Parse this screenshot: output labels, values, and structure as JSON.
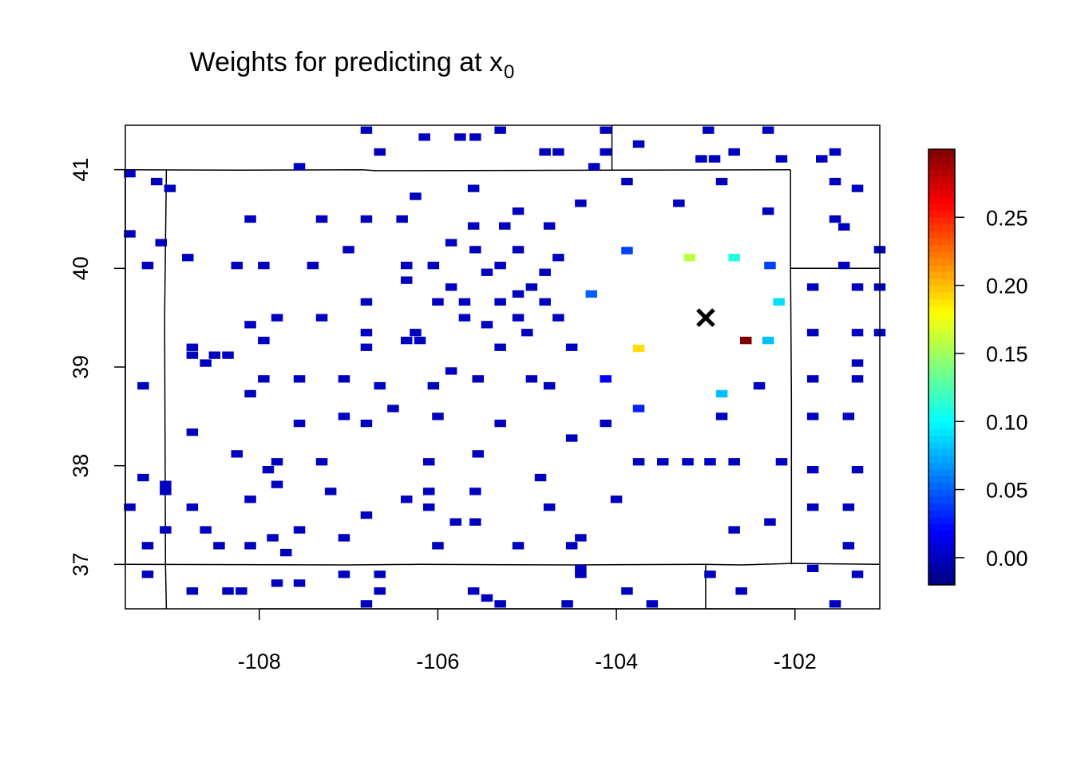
{
  "chart_data": {
    "type": "heatmap",
    "title": "Weights for predicting at x",
    "title_subscript": "0",
    "xlabel": "",
    "ylabel": "",
    "xlim": [
      -109.5,
      -101.05
    ],
    "ylim": [
      36.55,
      41.45
    ],
    "x_ticks": [
      -108,
      -106,
      -104,
      -102
    ],
    "x_tick_labels": [
      "-108",
      "-106",
      "-104",
      "-102"
    ],
    "y_ticks": [
      37,
      38,
      39,
      40,
      41
    ],
    "y_tick_labels": [
      "37",
      "38",
      "39",
      "40",
      "41"
    ],
    "grid": false,
    "legend": "colorbar-right",
    "colorbar": {
      "range": [
        -0.02,
        0.3
      ],
      "ticks": [
        0.0,
        0.05,
        0.1,
        0.15,
        0.2,
        0.25
      ],
      "tick_labels": [
        "0.00",
        "0.05",
        "0.10",
        "0.15",
        "0.20",
        "0.25"
      ],
      "colors": [
        "#00007f",
        "#0000ff",
        "#007fff",
        "#00ffff",
        "#7fff7f",
        "#ffff00",
        "#ff7f00",
        "#ff0000",
        "#7f0000"
      ]
    },
    "cell": {
      "w": 0.13,
      "h": 0.075
    },
    "weighted_cells": [
      {
        "x": -103.88,
        "y": 40.18,
        "w": 0.04
      },
      {
        "x": -103.18,
        "y": 40.11,
        "w": 0.16
      },
      {
        "x": -102.68,
        "y": 40.11,
        "w": 0.11
      },
      {
        "x": -102.28,
        "y": 40.03,
        "w": 0.04
      },
      {
        "x": -104.28,
        "y": 39.74,
        "w": 0.05
      },
      {
        "x": -102.18,
        "y": 39.66,
        "w": 0.09
      },
      {
        "x": -103.75,
        "y": 39.19,
        "w": 0.19
      },
      {
        "x": -102.55,
        "y": 39.27,
        "w": 0.3
      },
      {
        "x": -102.3,
        "y": 39.27,
        "w": 0.08
      },
      {
        "x": -102.82,
        "y": 38.73,
        "w": 0.08
      },
      {
        "x": -103.75,
        "y": 38.58,
        "w": 0.03
      },
      {
        "x": -104.12,
        "y": 38.88,
        "w": 0.02
      }
    ],
    "zero_cells": [
      [
        -106.8,
        41.4
      ],
      [
        -106.15,
        41.33
      ],
      [
        -105.75,
        41.33
      ],
      [
        -105.58,
        41.33
      ],
      [
        -105.3,
        41.4
      ],
      [
        -104.12,
        41.4
      ],
      [
        -102.97,
        41.4
      ],
      [
        -102.3,
        41.4
      ],
      [
        -106.65,
        41.18
      ],
      [
        -104.8,
        41.18
      ],
      [
        -104.65,
        41.18
      ],
      [
        -104.12,
        41.18
      ],
      [
        -103.75,
        41.26
      ],
      [
        -103.05,
        41.11
      ],
      [
        -102.9,
        41.11
      ],
      [
        -102.68,
        41.18
      ],
      [
        -102.15,
        41.11
      ],
      [
        -101.7,
        41.11
      ],
      [
        -101.55,
        41.18
      ],
      [
        -109.45,
        40.96
      ],
      [
        -107.55,
        41.03
      ],
      [
        -104.25,
        41.03
      ],
      [
        -109.15,
        40.88
      ],
      [
        -109.0,
        40.81
      ],
      [
        -105.6,
        40.81
      ],
      [
        -103.88,
        40.88
      ],
      [
        -102.82,
        40.88
      ],
      [
        -101.55,
        40.88
      ],
      [
        -101.3,
        40.81
      ],
      [
        -106.25,
        40.73
      ],
      [
        -104.4,
        40.66
      ],
      [
        -103.3,
        40.66
      ],
      [
        -102.3,
        40.58
      ],
      [
        -105.1,
        40.58
      ],
      [
        -108.1,
        40.5
      ],
      [
        -107.3,
        40.5
      ],
      [
        -106.8,
        40.5
      ],
      [
        -106.4,
        40.5
      ],
      [
        -101.55,
        40.5
      ],
      [
        -101.45,
        40.42
      ],
      [
        -105.6,
        40.43
      ],
      [
        -105.25,
        40.43
      ],
      [
        -104.75,
        40.43
      ],
      [
        -109.45,
        40.35
      ],
      [
        -109.1,
        40.26
      ],
      [
        -105.85,
        40.26
      ],
      [
        -107.0,
        40.19
      ],
      [
        -105.58,
        40.19
      ],
      [
        -105.1,
        40.19
      ],
      [
        -101.05,
        40.19
      ],
      [
        -108.8,
        40.11
      ],
      [
        -104.65,
        40.11
      ],
      [
        -109.25,
        40.03
      ],
      [
        -108.25,
        40.03
      ],
      [
        -107.95,
        40.03
      ],
      [
        -107.4,
        40.03
      ],
      [
        -106.35,
        40.03
      ],
      [
        -106.05,
        40.03
      ],
      [
        -105.3,
        40.03
      ],
      [
        -104.8,
        39.96
      ],
      [
        -101.45,
        40.03
      ],
      [
        -105.45,
        39.96
      ],
      [
        -106.35,
        39.88
      ],
      [
        -101.8,
        39.81
      ],
      [
        -101.3,
        39.81
      ],
      [
        -101.05,
        39.81
      ],
      [
        -105.85,
        39.81
      ],
      [
        -104.95,
        39.81
      ],
      [
        -105.1,
        39.74
      ],
      [
        -106.8,
        39.66
      ],
      [
        -106.0,
        39.66
      ],
      [
        -105.7,
        39.66
      ],
      [
        -105.3,
        39.66
      ],
      [
        -104.8,
        39.66
      ],
      [
        -107.8,
        39.5
      ],
      [
        -107.3,
        39.5
      ],
      [
        -105.7,
        39.5
      ],
      [
        -105.1,
        39.5
      ],
      [
        -104.65,
        39.5
      ],
      [
        -108.1,
        39.43
      ],
      [
        -105.45,
        39.43
      ],
      [
        -106.8,
        39.35
      ],
      [
        -106.25,
        39.35
      ],
      [
        -105.0,
        39.35
      ],
      [
        -101.8,
        39.35
      ],
      [
        -101.3,
        39.35
      ],
      [
        -101.05,
        39.35
      ],
      [
        -107.95,
        39.27
      ],
      [
        -106.35,
        39.27
      ],
      [
        -106.2,
        39.27
      ],
      [
        -108.75,
        39.2
      ],
      [
        -106.8,
        39.2
      ],
      [
        -105.3,
        39.2
      ],
      [
        -104.5,
        39.2
      ],
      [
        -108.75,
        39.12
      ],
      [
        -108.5,
        39.12
      ],
      [
        -108.35,
        39.12
      ],
      [
        -108.6,
        39.04
      ],
      [
        -101.3,
        39.04
      ],
      [
        -105.85,
        38.96
      ],
      [
        -107.95,
        38.88
      ],
      [
        -107.55,
        38.88
      ],
      [
        -107.05,
        38.88
      ],
      [
        -105.55,
        38.88
      ],
      [
        -104.95,
        38.88
      ],
      [
        -101.8,
        38.88
      ],
      [
        -101.3,
        38.88
      ],
      [
        -109.3,
        38.81
      ],
      [
        -106.65,
        38.81
      ],
      [
        -106.05,
        38.81
      ],
      [
        -104.75,
        38.81
      ],
      [
        -102.4,
        38.81
      ],
      [
        -108.1,
        38.73
      ],
      [
        -106.5,
        38.58
      ],
      [
        -107.05,
        38.5
      ],
      [
        -106.0,
        38.5
      ],
      [
        -102.82,
        38.5
      ],
      [
        -101.8,
        38.5
      ],
      [
        -101.4,
        38.5
      ],
      [
        -107.55,
        38.43
      ],
      [
        -106.8,
        38.43
      ],
      [
        -105.3,
        38.43
      ],
      [
        -104.12,
        38.43
      ],
      [
        -108.75,
        38.34
      ],
      [
        -104.5,
        38.28
      ],
      [
        -108.25,
        38.12
      ],
      [
        -105.55,
        38.12
      ],
      [
        -107.8,
        38.04
      ],
      [
        -107.3,
        38.04
      ],
      [
        -106.1,
        38.04
      ],
      [
        -103.75,
        38.04
      ],
      [
        -103.48,
        38.04
      ],
      [
        -103.2,
        38.04
      ],
      [
        -102.95,
        38.04
      ],
      [
        -102.68,
        38.04
      ],
      [
        -102.15,
        38.04
      ],
      [
        -107.9,
        37.96
      ],
      [
        -101.8,
        37.96
      ],
      [
        -101.3,
        37.96
      ],
      [
        -109.3,
        37.88
      ],
      [
        -104.85,
        37.88
      ],
      [
        -109.05,
        37.81
      ],
      [
        -107.8,
        37.81
      ],
      [
        -109.05,
        37.74
      ],
      [
        -107.2,
        37.74
      ],
      [
        -106.1,
        37.74
      ],
      [
        -105.58,
        37.74
      ],
      [
        -108.1,
        37.66
      ],
      [
        -106.35,
        37.66
      ],
      [
        -104.0,
        37.66
      ],
      [
        -109.45,
        37.58
      ],
      [
        -108.75,
        37.58
      ],
      [
        -106.1,
        37.58
      ],
      [
        -104.75,
        37.58
      ],
      [
        -101.8,
        37.58
      ],
      [
        -101.4,
        37.58
      ],
      [
        -106.8,
        37.5
      ],
      [
        -105.8,
        37.43
      ],
      [
        -105.58,
        37.43
      ],
      [
        -102.28,
        37.43
      ],
      [
        -109.05,
        37.35
      ],
      [
        -108.6,
        37.35
      ],
      [
        -107.55,
        37.35
      ],
      [
        -102.68,
        37.35
      ],
      [
        -107.85,
        37.27
      ],
      [
        -107.05,
        37.27
      ],
      [
        -104.4,
        37.27
      ],
      [
        -109.25,
        37.19
      ],
      [
        -108.45,
        37.19
      ],
      [
        -108.1,
        37.19
      ],
      [
        -106.0,
        37.19
      ],
      [
        -105.1,
        37.19
      ],
      [
        -104.5,
        37.19
      ],
      [
        -101.4,
        37.19
      ],
      [
        -107.7,
        37.12
      ],
      [
        -101.8,
        36.96
      ],
      [
        -104.4,
        36.96
      ],
      [
        -104.4,
        36.9
      ],
      [
        -109.25,
        36.9
      ],
      [
        -107.05,
        36.9
      ],
      [
        -106.65,
        36.9
      ],
      [
        -102.95,
        36.9
      ],
      [
        -101.3,
        36.9
      ],
      [
        -108.75,
        36.73
      ],
      [
        -108.35,
        36.73
      ],
      [
        -108.2,
        36.73
      ],
      [
        -107.8,
        36.81
      ],
      [
        -107.55,
        36.81
      ],
      [
        -106.65,
        36.73
      ],
      [
        -105.6,
        36.73
      ],
      [
        -103.88,
        36.73
      ],
      [
        -102.6,
        36.73
      ],
      [
        -105.45,
        36.66
      ],
      [
        -105.3,
        36.6
      ],
      [
        -106.8,
        36.6
      ],
      [
        -104.55,
        36.6
      ],
      [
        -103.6,
        36.6
      ],
      [
        -101.55,
        36.6
      ]
    ],
    "target_point": {
      "x": -103.0,
      "y": 39.5,
      "marker": "x"
    },
    "borders": [
      [
        [
          -109.5,
          41.0
        ],
        [
          -108.2,
          40.995
        ],
        [
          -106.85,
          41.0
        ],
        [
          -106.7,
          40.99
        ],
        [
          -104.05,
          40.995
        ],
        [
          -102.05,
          41.0
        ]
      ],
      [
        [
          -109.04,
          41.0
        ],
        [
          -109.06,
          39.5
        ],
        [
          -109.05,
          37.0
        ],
        [
          -109.04,
          36.55
        ]
      ],
      [
        [
          -102.05,
          41.0
        ],
        [
          -102.05,
          40.0
        ],
        [
          -102.04,
          38.7
        ],
        [
          -102.04,
          37.0
        ]
      ],
      [
        [
          -109.5,
          37.0
        ],
        [
          -107.0,
          36.995
        ],
        [
          -106.2,
          37.0
        ],
        [
          -104.5,
          36.995
        ],
        [
          -103.0,
          37.0
        ],
        [
          -102.6,
          36.995
        ],
        [
          -102.04,
          37.01
        ],
        [
          -101.05,
          37.0
        ]
      ],
      [
        [
          -102.05,
          40.0
        ],
        [
          -101.05,
          40.0
        ]
      ],
      [
        [
          -104.05,
          40.995
        ],
        [
          -104.05,
          41.45
        ]
      ],
      [
        [
          -103.0,
          37.0
        ],
        [
          -103.0,
          36.55
        ]
      ]
    ]
  }
}
